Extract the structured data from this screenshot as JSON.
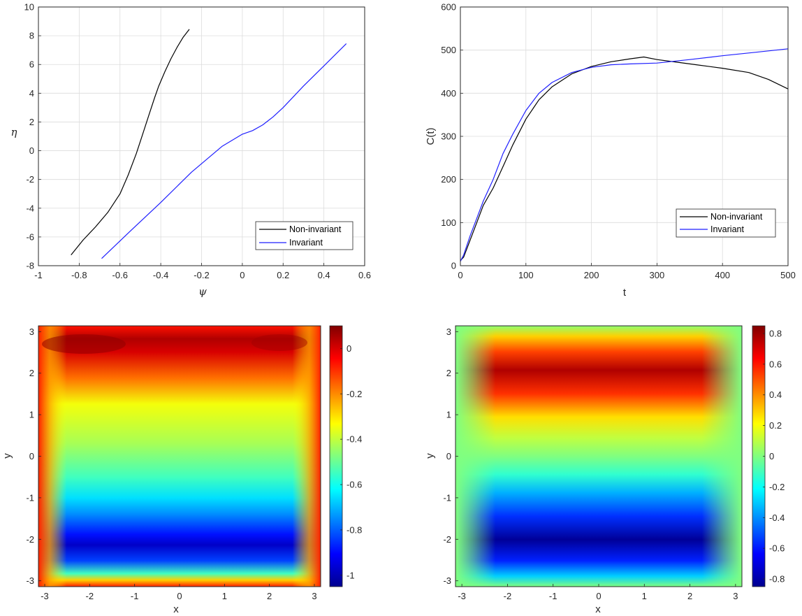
{
  "chart_data": [
    {
      "type": "line",
      "xlabel": "ψ",
      "ylabel": "η",
      "xlim": [
        -1,
        0.6
      ],
      "ylim": [
        -8,
        10
      ],
      "xticks": [
        "-1",
        "-0.8",
        "-0.6",
        "-0.4",
        "-0.2",
        "0",
        "0.2",
        "0.4",
        "0.6"
      ],
      "yticks": [
        "-8",
        "-6",
        "-4",
        "-2",
        "0",
        "2",
        "4",
        "6",
        "8",
        "10"
      ],
      "grid": true,
      "legend_position": "bottom-right",
      "series": [
        {
          "name": "Non-invariant",
          "color": "#000000",
          "x": [
            -0.84,
            -0.78,
            -0.72,
            -0.66,
            -0.6,
            -0.56,
            -0.52,
            -0.49,
            -0.46,
            -0.43,
            -0.41,
            -0.38,
            -0.35,
            -0.32,
            -0.29,
            -0.26
          ],
          "y": [
            -7.25,
            -6.2,
            -5.3,
            -4.3,
            -3.0,
            -1.7,
            -0.2,
            1.1,
            2.4,
            3.7,
            4.5,
            5.5,
            6.4,
            7.2,
            7.9,
            8.45
          ]
        },
        {
          "name": "Invariant",
          "color": "#1f1fff",
          "x": [
            -0.69,
            -0.55,
            -0.4,
            -0.25,
            -0.1,
            0.0,
            0.05,
            0.1,
            0.15,
            0.2,
            0.3,
            0.4,
            0.51
          ],
          "y": [
            -7.5,
            -5.6,
            -3.6,
            -1.5,
            0.3,
            1.15,
            1.4,
            1.8,
            2.35,
            3.0,
            4.5,
            5.9,
            7.45
          ]
        }
      ]
    },
    {
      "type": "line",
      "xlabel": "t",
      "ylabel": "C(t)",
      "xlim": [
        0,
        500
      ],
      "ylim": [
        0,
        600
      ],
      "xticks": [
        "0",
        "100",
        "200",
        "300",
        "400",
        "500"
      ],
      "yticks": [
        "0",
        "100",
        "200",
        "300",
        "400",
        "500",
        "600"
      ],
      "grid": true,
      "legend_position": "bottom-right",
      "series": [
        {
          "name": "Non-invariant",
          "color": "#000000",
          "x": [
            0,
            5,
            15,
            25,
            35,
            50,
            65,
            80,
            100,
            120,
            140,
            170,
            200,
            230,
            260,
            280,
            300,
            330,
            360,
            400,
            440,
            470,
            500
          ],
          "y": [
            12,
            20,
            60,
            100,
            140,
            180,
            230,
            280,
            340,
            385,
            415,
            445,
            462,
            473,
            480,
            484,
            478,
            472,
            466,
            458,
            448,
            432,
            410
          ]
        },
        {
          "name": "Invariant",
          "color": "#1f1fff",
          "x": [
            0,
            5,
            15,
            25,
            35,
            50,
            65,
            80,
            100,
            120,
            140,
            170,
            200,
            230,
            260,
            300,
            350,
            400,
            450,
            500
          ],
          "y": [
            10,
            25,
            70,
            110,
            150,
            200,
            260,
            305,
            360,
            400,
            425,
            448,
            460,
            466,
            468,
            470,
            478,
            487,
            495,
            503
          ]
        }
      ]
    },
    {
      "type": "heatmap",
      "xlabel": "x",
      "ylabel": "y",
      "xlim": [
        -3.14,
        3.14
      ],
      "ylim": [
        -3.14,
        3.14
      ],
      "xticks": [
        "-3",
        "-2",
        "-1",
        "0",
        "1",
        "2",
        "3"
      ],
      "yticks": [
        "-3",
        "-2",
        "-1",
        "0",
        "1",
        "2",
        "3"
      ],
      "colormap": "jet",
      "clim": [
        -1.05,
        0.1
      ],
      "colorbar_ticks": [
        "-1",
        "-0.8",
        "-0.6",
        "-0.4",
        "-0.2",
        "0"
      ],
      "features": {
        "maximum": {
          "x": -2.3,
          "y": 2.8,
          "value": 0.1
        },
        "minimum": {
          "x": 0,
          "y": -2.0,
          "value": -1.05
        }
      }
    },
    {
      "type": "heatmap",
      "xlabel": "x",
      "ylabel": "y",
      "xlim": [
        -3.14,
        3.14
      ],
      "ylim": [
        -3.14,
        3.14
      ],
      "xticks": [
        "-3",
        "-2",
        "-1",
        "0",
        "1",
        "2",
        "3"
      ],
      "yticks": [
        "-3",
        "-2",
        "-1",
        "0",
        "1",
        "2",
        "3"
      ],
      "colormap": "jet",
      "clim": [
        -0.85,
        0.85
      ],
      "colorbar_ticks": [
        "-0.8",
        "-0.6",
        "-0.4",
        "-0.2",
        "0",
        "0.2",
        "0.4",
        "0.6",
        "0.8"
      ],
      "features": {
        "maximum": {
          "x": -0.2,
          "y": 2.1,
          "value": 0.85
        },
        "minimum": {
          "x": 0,
          "y": -2.1,
          "value": -0.85
        }
      }
    }
  ]
}
